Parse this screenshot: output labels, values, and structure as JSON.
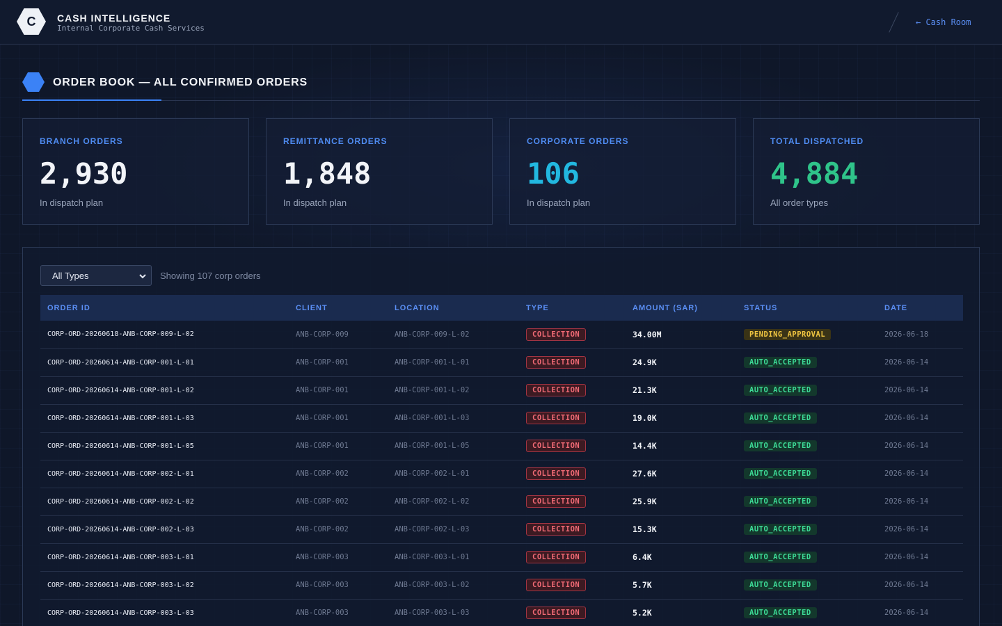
{
  "header": {
    "logo_letter": "C",
    "title": "CASH INTELLIGENCE",
    "subtitle": "Internal Corporate Cash Services",
    "back_link": "← Cash Room"
  },
  "section": {
    "title": "ORDER BOOK — ALL CONFIRMED ORDERS"
  },
  "cards": [
    {
      "label": "BRANCH ORDERS",
      "value": "2,930",
      "note": "In dispatch plan",
      "color": "#f2f4f8"
    },
    {
      "label": "REMITTANCE ORDERS",
      "value": "1,848",
      "note": "In dispatch plan",
      "color": "#f2f4f8"
    },
    {
      "label": "CORPORATE ORDERS",
      "value": "106",
      "note": "In dispatch plan",
      "color": "#22b8e0"
    },
    {
      "label": "TOTAL DISPATCHED",
      "value": "4,884",
      "note": "All order types",
      "color": "#2fc48a"
    }
  ],
  "filter": {
    "selected": "All Types",
    "showing": "Showing 107 corp orders"
  },
  "table": {
    "columns": [
      "ORDER ID",
      "CLIENT",
      "LOCATION",
      "TYPE",
      "AMOUNT (SAR)",
      "STATUS",
      "DATE"
    ],
    "rows": [
      {
        "id": "CORP-ORD-20260618-ANB-CORP-009-L-02",
        "client": "ANB-CORP-009",
        "location": "ANB-CORP-009-L-02",
        "type": "COLLECTION",
        "amount": "34.00M",
        "status": "PENDING_APPROVAL",
        "date": "2026-06-18"
      },
      {
        "id": "CORP-ORD-20260614-ANB-CORP-001-L-01",
        "client": "ANB-CORP-001",
        "location": "ANB-CORP-001-L-01",
        "type": "COLLECTION",
        "amount": "24.9K",
        "status": "AUTO_ACCEPTED",
        "date": "2026-06-14"
      },
      {
        "id": "CORP-ORD-20260614-ANB-CORP-001-L-02",
        "client": "ANB-CORP-001",
        "location": "ANB-CORP-001-L-02",
        "type": "COLLECTION",
        "amount": "21.3K",
        "status": "AUTO_ACCEPTED",
        "date": "2026-06-14"
      },
      {
        "id": "CORP-ORD-20260614-ANB-CORP-001-L-03",
        "client": "ANB-CORP-001",
        "location": "ANB-CORP-001-L-03",
        "type": "COLLECTION",
        "amount": "19.0K",
        "status": "AUTO_ACCEPTED",
        "date": "2026-06-14"
      },
      {
        "id": "CORP-ORD-20260614-ANB-CORP-001-L-05",
        "client": "ANB-CORP-001",
        "location": "ANB-CORP-001-L-05",
        "type": "COLLECTION",
        "amount": "14.4K",
        "status": "AUTO_ACCEPTED",
        "date": "2026-06-14"
      },
      {
        "id": "CORP-ORD-20260614-ANB-CORP-002-L-01",
        "client": "ANB-CORP-002",
        "location": "ANB-CORP-002-L-01",
        "type": "COLLECTION",
        "amount": "27.6K",
        "status": "AUTO_ACCEPTED",
        "date": "2026-06-14"
      },
      {
        "id": "CORP-ORD-20260614-ANB-CORP-002-L-02",
        "client": "ANB-CORP-002",
        "location": "ANB-CORP-002-L-02",
        "type": "COLLECTION",
        "amount": "25.9K",
        "status": "AUTO_ACCEPTED",
        "date": "2026-06-14"
      },
      {
        "id": "CORP-ORD-20260614-ANB-CORP-002-L-03",
        "client": "ANB-CORP-002",
        "location": "ANB-CORP-002-L-03",
        "type": "COLLECTION",
        "amount": "15.3K",
        "status": "AUTO_ACCEPTED",
        "date": "2026-06-14"
      },
      {
        "id": "CORP-ORD-20260614-ANB-CORP-003-L-01",
        "client": "ANB-CORP-003",
        "location": "ANB-CORP-003-L-01",
        "type": "COLLECTION",
        "amount": "6.4K",
        "status": "AUTO_ACCEPTED",
        "date": "2026-06-14"
      },
      {
        "id": "CORP-ORD-20260614-ANB-CORP-003-L-02",
        "client": "ANB-CORP-003",
        "location": "ANB-CORP-003-L-02",
        "type": "COLLECTION",
        "amount": "5.7K",
        "status": "AUTO_ACCEPTED",
        "date": "2026-06-14"
      },
      {
        "id": "CORP-ORD-20260614-ANB-CORP-003-L-03",
        "client": "ANB-CORP-003",
        "location": "ANB-CORP-003-L-03",
        "type": "COLLECTION",
        "amount": "5.2K",
        "status": "AUTO_ACCEPTED",
        "date": "2026-06-14"
      }
    ]
  }
}
